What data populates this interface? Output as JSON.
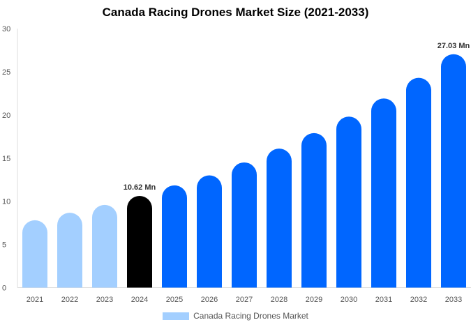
{
  "chart_data": {
    "type": "bar",
    "title": "Canada Racing Drones Market Size (2021-2033)",
    "categories": [
      "2021",
      "2022",
      "2023",
      "2024",
      "2025",
      "2026",
      "2027",
      "2028",
      "2029",
      "2030",
      "2031",
      "2032",
      "2033"
    ],
    "series": [
      {
        "name": "Canada Racing Drones Market",
        "values": [
          7.8,
          8.67,
          9.58,
          10.62,
          11.84,
          13.0,
          14.5,
          16.1,
          17.9,
          19.8,
          21.9,
          24.3,
          27.03
        ]
      }
    ],
    "data_labels": {
      "2024": "10.62 Mn",
      "2033": "27.03 Mn"
    },
    "ylim": [
      0,
      30
    ],
    "yticks": [
      0,
      5,
      10,
      15,
      20,
      25,
      30
    ],
    "grid": false,
    "legend": "bottom",
    "colors": {
      "historical": "#a3cfff",
      "current": "#000000",
      "forecast": "#0066ff"
    }
  }
}
